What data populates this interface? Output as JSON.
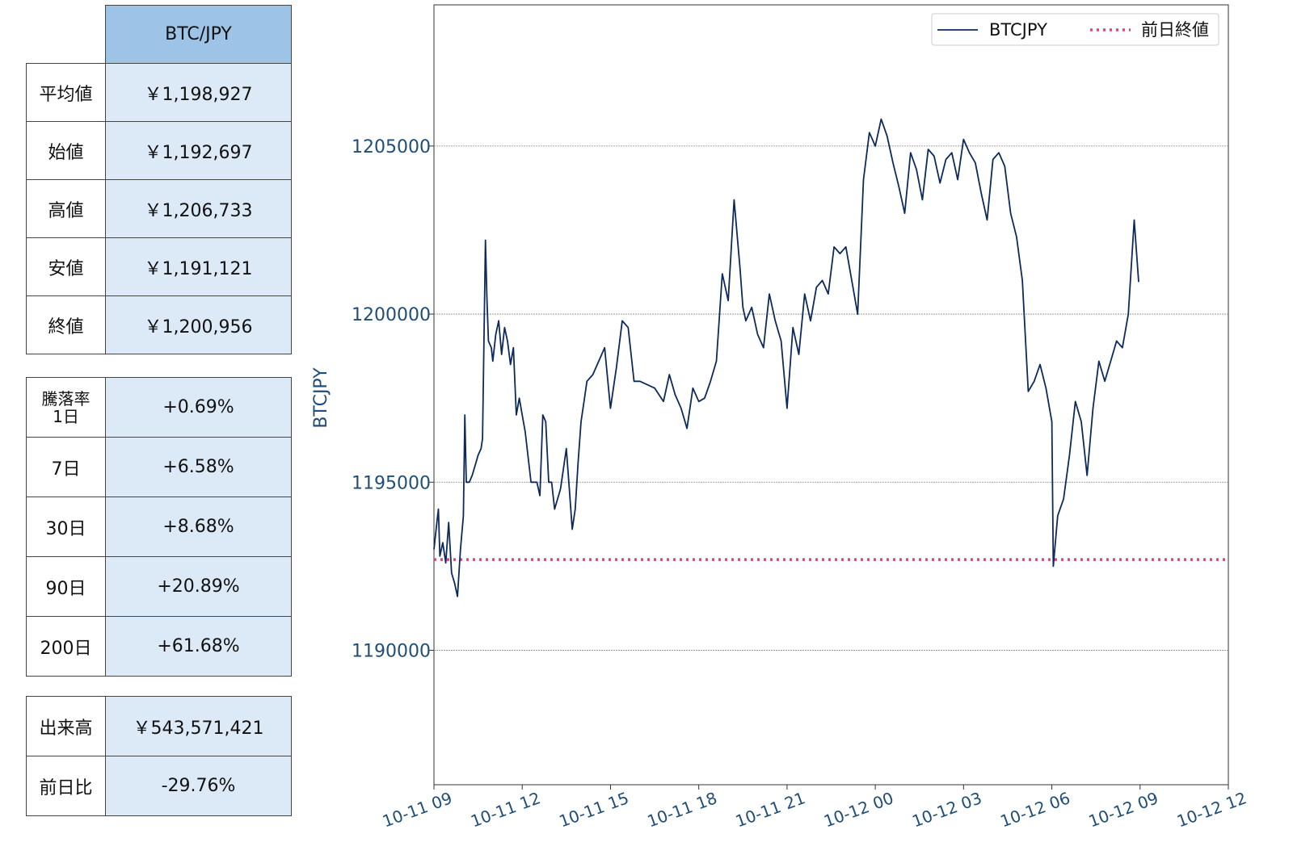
{
  "summary_table": {
    "header": "BTC/JPY",
    "rows": [
      {
        "label": "平均値",
        "value": "￥1,198,927"
      },
      {
        "label": "始値",
        "value": "￥1,192,697"
      },
      {
        "label": "高値",
        "value": "￥1,206,733"
      },
      {
        "label": "安値",
        "value": "￥1,191,121"
      },
      {
        "label": "終値",
        "value": "￥1,200,956"
      }
    ]
  },
  "change_table": {
    "first_label_line1": "騰落率",
    "rows": [
      {
        "label": "1日",
        "value": "+0.69%"
      },
      {
        "label": "7日",
        "value": "+6.58%"
      },
      {
        "label": "30日",
        "value": "+8.68%"
      },
      {
        "label": "90日",
        "value": "+20.89%"
      },
      {
        "label": "200日",
        "value": "+61.68%"
      }
    ]
  },
  "volume_table": {
    "rows": [
      {
        "label": "出来高",
        "value": "￥543,571,421"
      },
      {
        "label": "前日比",
        "value": "-29.76%"
      }
    ]
  },
  "colors": {
    "series": "#0d2a5c",
    "prev_close": "#e0457b",
    "axis_text": "#1f4e79",
    "grid": "#888888"
  },
  "chart_data": {
    "type": "line",
    "title": "",
    "xlabel": "",
    "ylabel": "BTCJPY",
    "ylim": [
      1186000,
      1209200
    ],
    "xlim_hours": [
      0,
      27
    ],
    "yticks": [
      1190000,
      1195000,
      1200000,
      1205000
    ],
    "xticks": [
      {
        "h": 0,
        "label": "10-11 09"
      },
      {
        "h": 3,
        "label": "10-11 12"
      },
      {
        "h": 6,
        "label": "10-11 15"
      },
      {
        "h": 9,
        "label": "10-11 18"
      },
      {
        "h": 12,
        "label": "10-11 21"
      },
      {
        "h": 15,
        "label": "10-12 00"
      },
      {
        "h": 18,
        "label": "10-12 03"
      },
      {
        "h": 21,
        "label": "10-12 06"
      },
      {
        "h": 24,
        "label": "10-12 09"
      },
      {
        "h": 27,
        "label": "10-12 12"
      }
    ],
    "grid": "horizontal",
    "legend": {
      "position": "top-right",
      "entries": [
        "BTCJPY",
        "前日終値"
      ]
    },
    "series": [
      {
        "name": "BTCJPY",
        "x_hours": [
          0,
          0.1,
          0.15,
          0.2,
          0.3,
          0.4,
          0.5,
          0.6,
          0.7,
          0.8,
          0.9,
          1.0,
          1.05,
          1.1,
          1.2,
          1.3,
          1.4,
          1.5,
          1.6,
          1.65,
          1.75,
          1.8,
          1.85,
          1.95,
          2.0,
          2.1,
          2.2,
          2.3,
          2.4,
          2.5,
          2.6,
          2.7,
          2.8,
          2.9,
          3.0,
          3.1,
          3.3,
          3.5,
          3.6,
          3.7,
          3.8,
          3.9,
          4.0,
          4.1,
          4.3,
          4.5,
          4.6,
          4.7,
          4.8,
          4.9,
          5.0,
          5.1,
          5.2,
          5.4,
          5.6,
          5.8,
          6.0,
          6.2,
          6.4,
          6.6,
          6.8,
          7.0,
          7.5,
          7.8,
          8.0,
          8.2,
          8.4,
          8.6,
          8.8,
          9.0,
          9.2,
          9.4,
          9.6,
          9.8,
          10.0,
          10.2,
          10.4,
          10.5,
          10.6,
          10.8,
          11.0,
          11.2,
          11.4,
          11.6,
          11.8,
          12.0,
          12.2,
          12.4,
          12.6,
          12.8,
          13.0,
          13.2,
          13.4,
          13.6,
          13.8,
          14.0,
          14.2,
          14.4,
          14.6,
          14.8,
          15.0,
          15.2,
          15.4,
          15.6,
          15.8,
          16.0,
          16.2,
          16.4,
          16.6,
          16.8,
          17.0,
          17.2,
          17.4,
          17.6,
          17.8,
          18.0,
          18.2,
          18.4,
          18.6,
          18.8,
          19.0,
          19.2,
          19.4,
          19.6,
          19.8,
          20.0,
          20.2,
          20.4,
          20.6,
          20.8,
          21.0,
          21.05,
          21.2,
          21.4,
          21.6,
          21.8,
          22.0,
          22.2,
          22.4,
          22.6,
          22.8,
          23.0,
          23.2,
          23.4,
          23.6,
          23.8,
          23.95
        ],
        "values": [
          1193000,
          1193800,
          1194200,
          1192800,
          1193200,
          1192600,
          1193800,
          1192300,
          1192000,
          1191600,
          1193000,
          1194000,
          1197000,
          1195000,
          1195000,
          1195200,
          1195500,
          1195800,
          1196000,
          1196300,
          1202200,
          1200500,
          1199200,
          1199000,
          1198600,
          1199400,
          1199800,
          1198800,
          1199600,
          1199200,
          1198500,
          1199000,
          1197000,
          1197500,
          1197000,
          1196500,
          1195000,
          1195000,
          1194600,
          1197000,
          1196800,
          1195000,
          1195000,
          1194200,
          1194800,
          1196000,
          1194800,
          1193600,
          1194200,
          1195600,
          1196800,
          1197400,
          1198000,
          1198200,
          1198600,
          1199000,
          1197200,
          1198400,
          1199800,
          1199600,
          1198000,
          1198000,
          1197800,
          1197400,
          1198200,
          1197600,
          1197200,
          1196600,
          1197800,
          1197400,
          1197500,
          1198000,
          1198600,
          1201200,
          1200400,
          1203400,
          1201400,
          1200200,
          1199800,
          1200200,
          1199400,
          1199000,
          1200600,
          1199800,
          1199200,
          1197200,
          1199600,
          1198800,
          1200600,
          1199800,
          1200800,
          1201000,
          1200600,
          1202000,
          1201800,
          1202000,
          1201000,
          1200000,
          1204000,
          1205400,
          1205000,
          1205800,
          1205300,
          1204500,
          1203800,
          1203000,
          1204800,
          1204300,
          1203400,
          1204900,
          1204700,
          1203900,
          1204600,
          1204800,
          1204000,
          1205200,
          1204800,
          1204500,
          1203600,
          1202800,
          1204600,
          1204800,
          1204400,
          1203000,
          1202300,
          1201000,
          1197700,
          1198000,
          1198500,
          1197800,
          1196800,
          1192500,
          1194000,
          1194500,
          1195800,
          1197400,
          1196800,
          1195200,
          1197200,
          1198600,
          1198000,
          1198600,
          1199200,
          1199000,
          1200000,
          1202800,
          1200956
        ]
      },
      {
        "name": "前日終値",
        "value": 1192697
      }
    ]
  }
}
